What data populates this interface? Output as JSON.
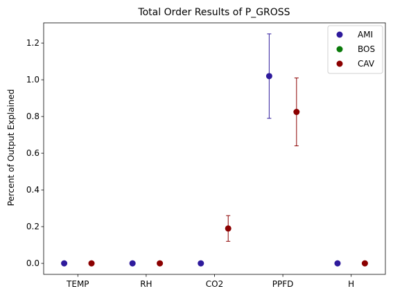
{
  "chart_data": {
    "type": "scatter",
    "title": "Total Order Results of P_GROSS",
    "xlabel": "",
    "ylabel": "Percent of Output Explained",
    "categories": [
      "TEMP",
      "RH",
      "CO2",
      "PPFD",
      "H"
    ],
    "ylim": [
      -0.06,
      1.31
    ],
    "yticks": [
      "0.0",
      "0.2",
      "0.4",
      "0.6",
      "0.8",
      "1.0",
      "1.2"
    ],
    "grid": false,
    "legend_position": "top-right",
    "series": [
      {
        "name": "AMI",
        "color": "#2e1a9c",
        "offset": -0.2,
        "values": [
          0.0,
          0.0,
          0.0,
          1.02,
          0.0
        ],
        "err_low": [
          null,
          null,
          null,
          0.79,
          null
        ],
        "err_high": [
          null,
          null,
          null,
          1.25,
          null
        ]
      },
      {
        "name": "BOS",
        "color": "#0a7a0a",
        "offset": 0,
        "values": [],
        "err_low": [],
        "err_high": []
      },
      {
        "name": "CAV",
        "color": "#8b0000",
        "offset": 0.2,
        "values": [
          0.0,
          0.0,
          0.19,
          0.825,
          0.0
        ],
        "err_low": [
          null,
          null,
          0.12,
          0.64,
          null
        ],
        "err_high": [
          null,
          null,
          0.26,
          1.01,
          null
        ]
      }
    ]
  }
}
